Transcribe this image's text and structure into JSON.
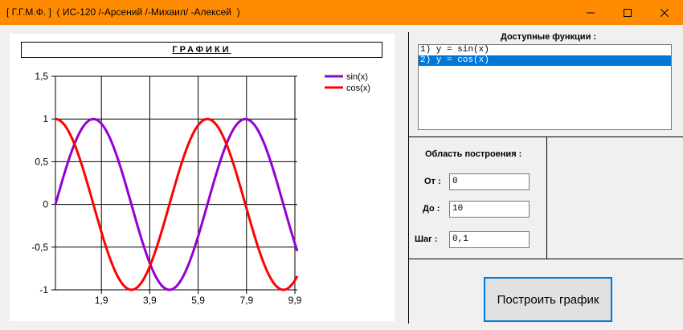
{
  "window": {
    "title": "[ Г.Г.М.Ф. ]  ( ИС-120 /-Арсений /-Михаил/ -Алексей  )",
    "minimize_icon": "minimize-icon",
    "maximize_icon": "maximize-icon",
    "close_icon": "close-icon"
  },
  "chart_data": {
    "type": "line",
    "title": "ГРАФИКИ",
    "xlabel": "",
    "ylabel": "",
    "xlim": [
      0,
      10
    ],
    "ylim": [
      -1,
      1.5
    ],
    "x_ticks": [
      1.9,
      3.9,
      5.9,
      7.9,
      9.9
    ],
    "x_tick_labels": [
      "1,9",
      "3,9",
      "5,9",
      "7,9",
      "9,9"
    ],
    "y_ticks": [
      -1,
      -0.5,
      0,
      0.5,
      1,
      1.5
    ],
    "y_tick_labels": [
      "-1",
      "-0,5",
      "0",
      "0,5",
      "1",
      "1,5"
    ],
    "grid": true,
    "legend": "top-right",
    "step": 0.1,
    "series": [
      {
        "name": "sin(x)",
        "function": "sin",
        "color": "#9400d3"
      },
      {
        "name": "cos(x)",
        "function": "cos",
        "color": "#ff0000"
      }
    ]
  },
  "panel": {
    "functions_label": "Доступные функции :",
    "functions": [
      {
        "label": "1) y = sin(x)",
        "selected": false
      },
      {
        "label": "2) y = cos(x)",
        "selected": true
      }
    ],
    "region_label": "Область построения :",
    "from_label": "От :",
    "from_value": "0",
    "to_label": "До :",
    "to_value": "10",
    "step_label": "Шаг :",
    "step_value": "0,1",
    "build_button": "Построить график"
  }
}
